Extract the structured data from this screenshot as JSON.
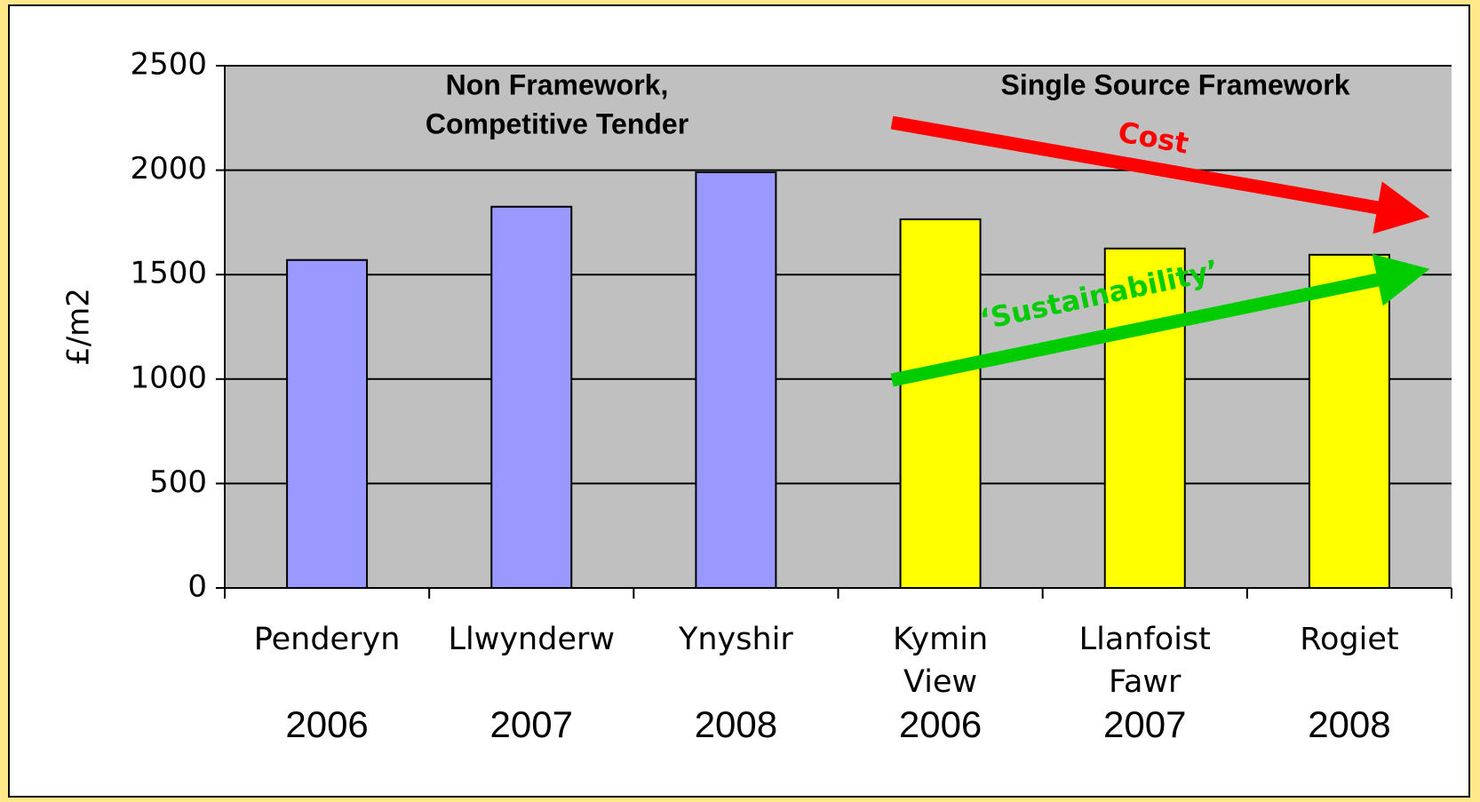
{
  "chart_data": {
    "type": "bar",
    "ylabel": "£/m2",
    "categories": [
      "Penderyn",
      "Llwynderw",
      "Ynyshir",
      "Kymin View",
      "Llanfoist Fawr",
      "Rogiet"
    ],
    "years": [
      "2006",
      "2007",
      "2008",
      "2006",
      "2007",
      "2008"
    ],
    "values": [
      1570,
      1825,
      1990,
      1765,
      1625,
      1595
    ],
    "colors": [
      "#9999ff",
      "#9999ff",
      "#9999ff",
      "#ffff00",
      "#ffff00",
      "#ffff00"
    ],
    "ylim": [
      0,
      2500
    ],
    "yticks": [
      0,
      500,
      1000,
      1500,
      2000,
      2500
    ],
    "grid": true,
    "group_labels": [
      [
        "Non Framework,",
        "Competitive Tender"
      ],
      [
        "Single Source Framework"
      ]
    ],
    "annotations": [
      "Cost",
      "‘Sustainability’"
    ]
  }
}
